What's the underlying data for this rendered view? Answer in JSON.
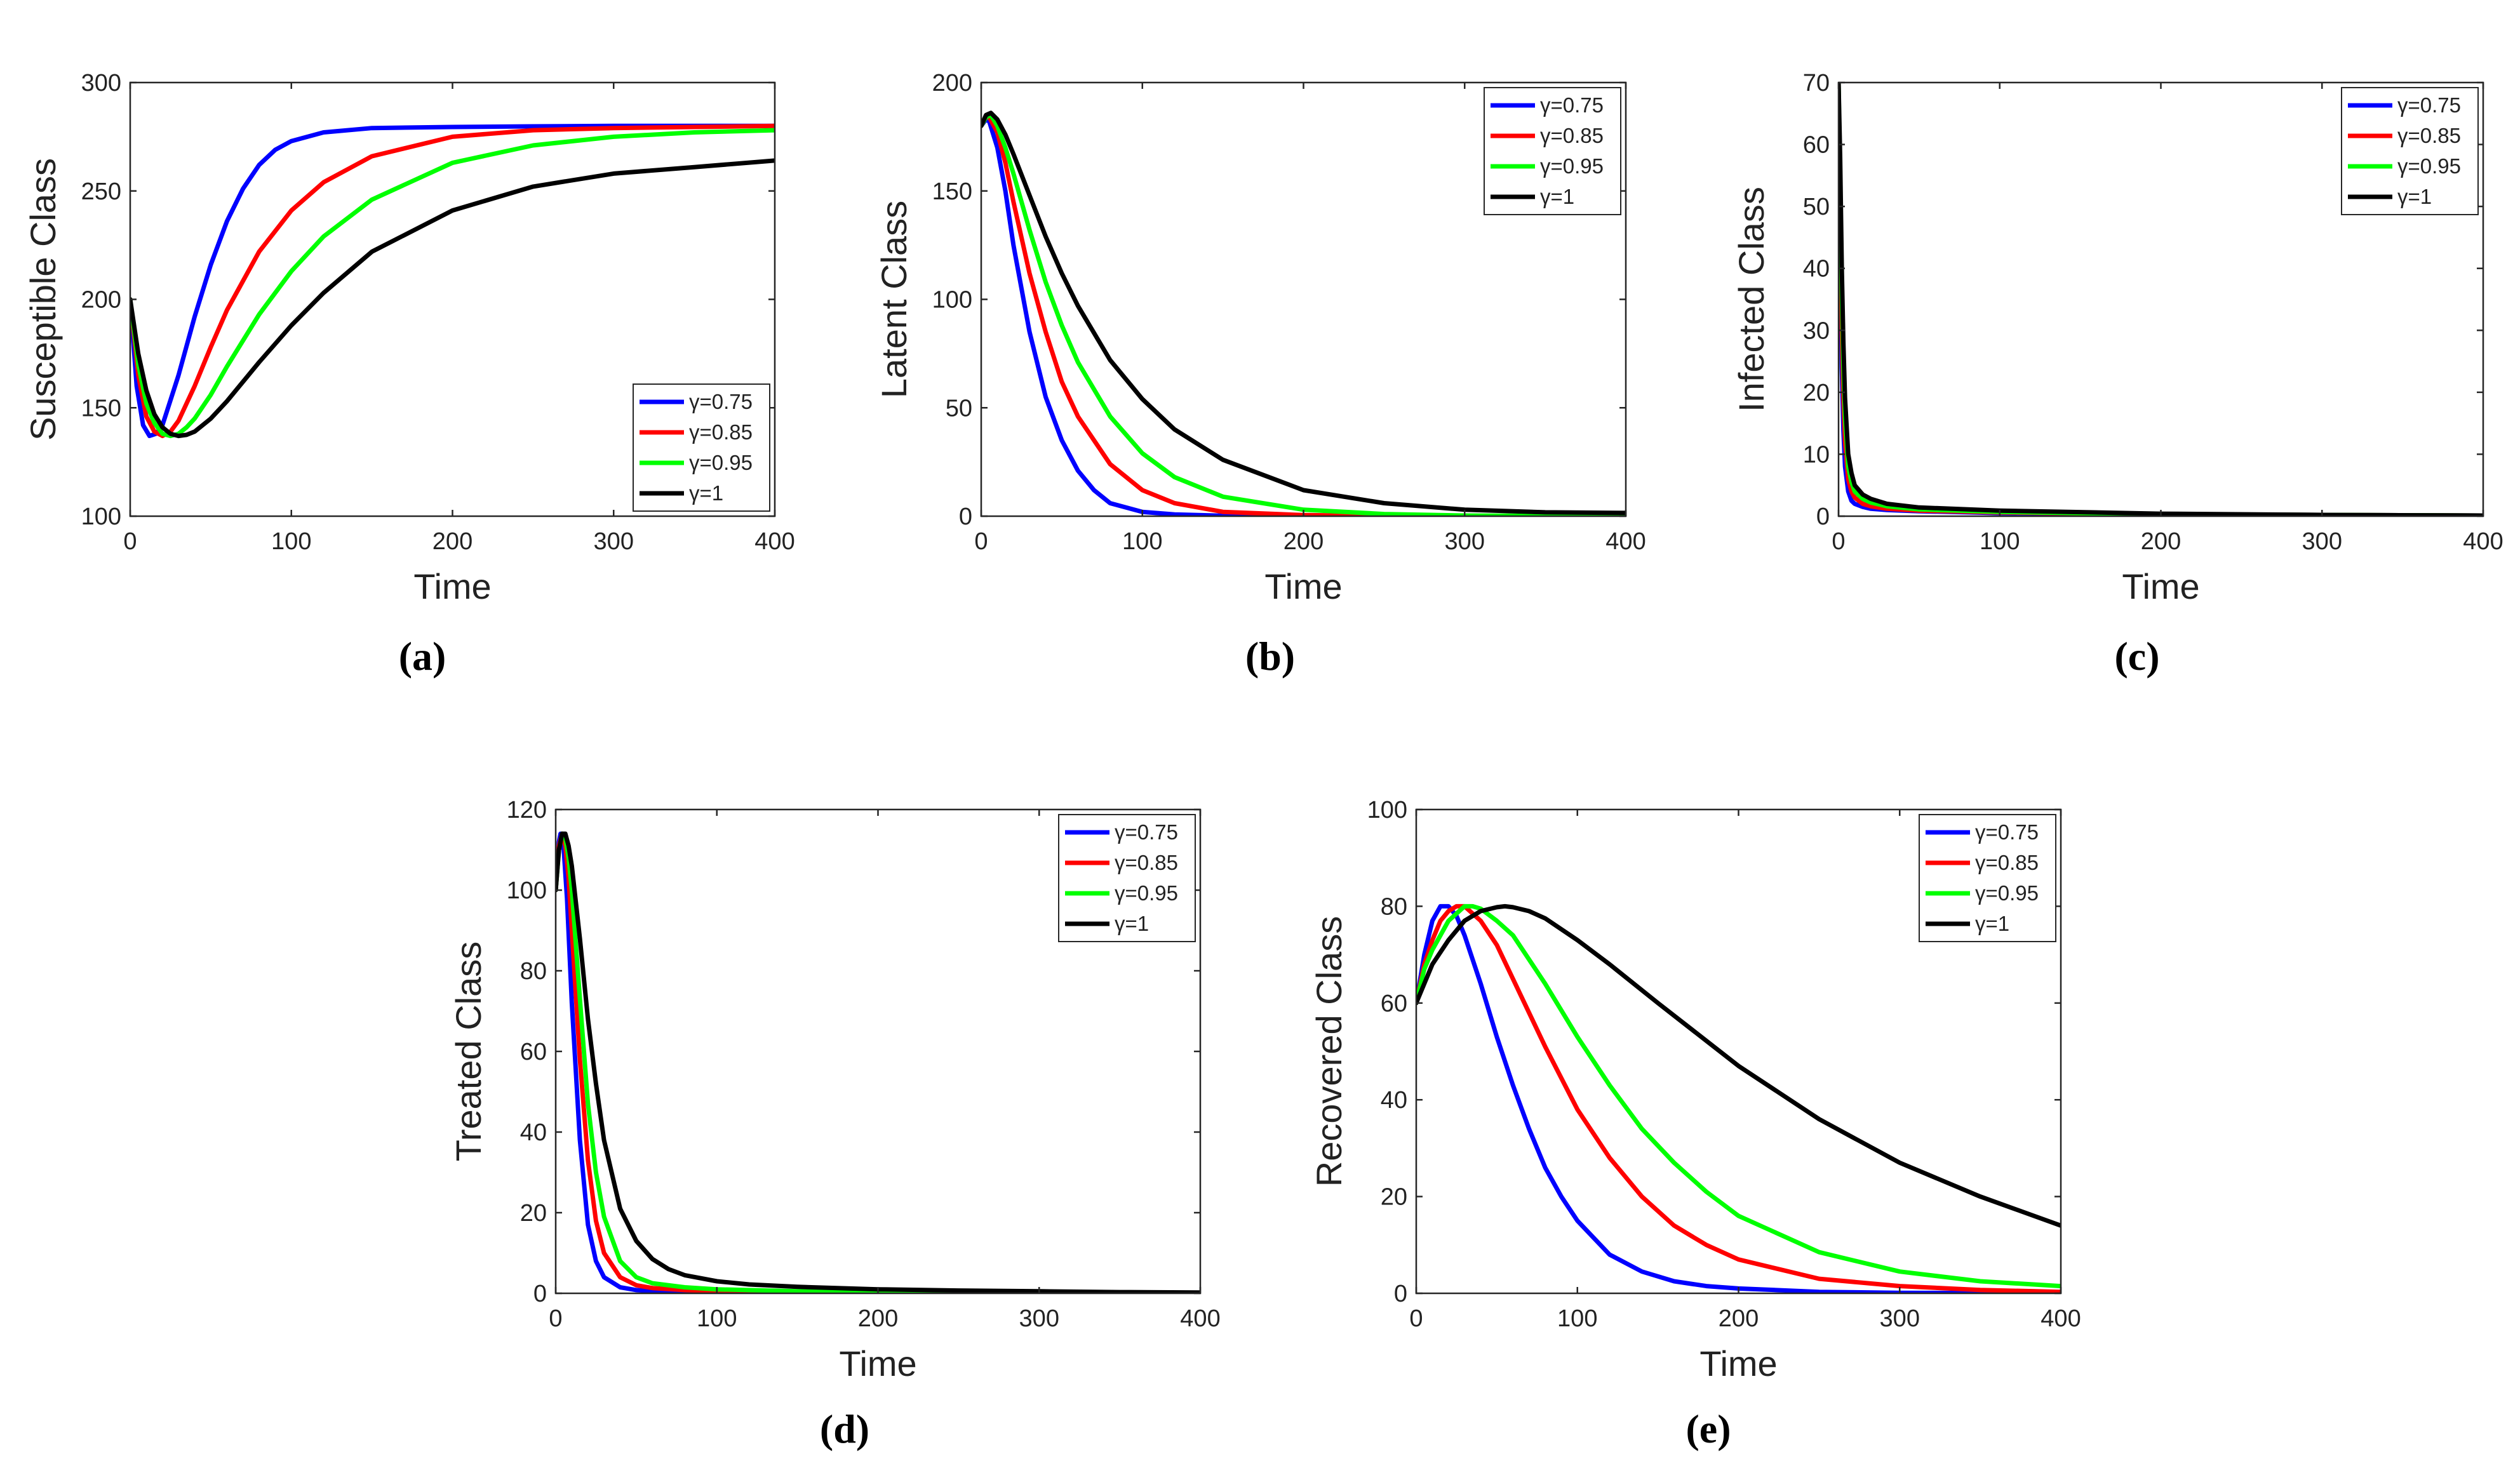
{
  "series_colors": [
    "#0000ff",
    "#ff0000",
    "#00ff00",
    "#000000"
  ],
  "legend_labels": [
    "γ=0.75",
    "γ=0.85",
    "γ=0.95",
    "γ=1"
  ],
  "chart_data": [
    {
      "id": "a",
      "type": "line",
      "caption": "(a)",
      "xlabel": "Time",
      "ylabel": "Susceptible Class",
      "xlim": [
        0,
        400
      ],
      "ylim": [
        100,
        300
      ],
      "xticks": [
        0,
        100,
        200,
        300,
        400
      ],
      "yticks": [
        100,
        150,
        200,
        250,
        300
      ],
      "legend_position": "lower-right",
      "series": [
        {
          "name": "γ=0.75",
          "color": "#0000ff",
          "x": [
            0,
            4,
            8,
            12,
            16,
            20,
            30,
            40,
            50,
            60,
            70,
            80,
            90,
            100,
            120,
            150,
            200,
            250,
            300,
            350,
            400
          ],
          "y": [
            200,
            160,
            142,
            137,
            138,
            142,
            165,
            192,
            216,
            236,
            251,
            262,
            269,
            273,
            277,
            279,
            279.5,
            279.8,
            280,
            280,
            280
          ]
        },
        {
          "name": "γ=0.85",
          "color": "#ff0000",
          "x": [
            0,
            5,
            10,
            15,
            20,
            25,
            30,
            40,
            50,
            60,
            80,
            100,
            120,
            150,
            200,
            250,
            300,
            350,
            400
          ],
          "y": [
            200,
            165,
            146,
            139,
            137,
            139,
            144,
            160,
            178,
            195,
            222,
            241,
            254,
            266,
            275,
            278,
            279,
            279.5,
            280
          ]
        },
        {
          "name": "γ=0.95",
          "color": "#00ff00",
          "x": [
            0,
            5,
            10,
            15,
            20,
            25,
            30,
            35,
            40,
            50,
            60,
            80,
            100,
            120,
            150,
            200,
            250,
            300,
            350,
            400
          ],
          "y": [
            200,
            170,
            152,
            143,
            138,
            137,
            138,
            141,
            145,
            156,
            169,
            193,
            213,
            229,
            246,
            263,
            271,
            275,
            277,
            278
          ]
        },
        {
          "name": "γ=1",
          "color": "#000000",
          "x": [
            0,
            5,
            10,
            15,
            20,
            25,
            30,
            35,
            40,
            50,
            60,
            80,
            100,
            120,
            150,
            200,
            250,
            300,
            350,
            400
          ],
          "y": [
            200,
            175,
            158,
            147,
            141,
            138,
            137,
            137.5,
            139,
            145,
            153,
            171,
            188,
            203,
            222,
            241,
            252,
            258,
            261,
            264
          ]
        }
      ]
    },
    {
      "id": "b",
      "type": "line",
      "caption": "(b)",
      "xlabel": "Time",
      "ylabel": "Latent Class",
      "xlim": [
        0,
        400
      ],
      "ylim": [
        0,
        200
      ],
      "xticks": [
        0,
        100,
        200,
        300,
        400
      ],
      "yticks": [
        0,
        50,
        100,
        150,
        200
      ],
      "legend_position": "top-right",
      "series": [
        {
          "name": "γ=0.75",
          "color": "#0000ff",
          "x": [
            0,
            3,
            5,
            10,
            15,
            20,
            30,
            40,
            50,
            60,
            70,
            80,
            100,
            120,
            150,
            200,
            300,
            400
          ],
          "y": [
            180,
            183,
            182,
            170,
            150,
            125,
            85,
            55,
            35,
            21,
            12,
            6,
            2,
            0.8,
            0.2,
            0,
            0,
            0
          ]
        },
        {
          "name": "γ=0.85",
          "color": "#ff0000",
          "x": [
            0,
            3,
            5,
            10,
            15,
            20,
            30,
            40,
            50,
            60,
            80,
            100,
            120,
            150,
            200,
            250,
            300,
            400
          ],
          "y": [
            180,
            184,
            184,
            177,
            163,
            145,
            112,
            85,
            62,
            46,
            24,
            12,
            6,
            2,
            0.5,
            0.1,
            0,
            0
          ]
        },
        {
          "name": "γ=0.95",
          "color": "#00ff00",
          "x": [
            0,
            3,
            6,
            10,
            15,
            20,
            30,
            40,
            50,
            60,
            80,
            100,
            120,
            150,
            200,
            250,
            300,
            400
          ],
          "y": [
            180,
            184,
            185,
            180,
            170,
            158,
            132,
            108,
            88,
            71,
            46,
            29,
            18,
            9,
            3,
            1,
            0.3,
            0
          ]
        },
        {
          "name": "γ=1",
          "color": "#000000",
          "x": [
            0,
            3,
            6,
            10,
            15,
            20,
            30,
            40,
            50,
            60,
            80,
            100,
            120,
            150,
            200,
            250,
            300,
            350,
            400
          ],
          "y": [
            180,
            185,
            186,
            183,
            176,
            167,
            148,
            129,
            112,
            97,
            72,
            54,
            40,
            26,
            12,
            6,
            3,
            1.8,
            1.5
          ]
        }
      ]
    },
    {
      "id": "c",
      "type": "line",
      "caption": "(c)",
      "xlabel": "Time",
      "ylabel": "Infected Class",
      "xlim": [
        0,
        400
      ],
      "ylim": [
        0,
        70
      ],
      "xticks": [
        0,
        100,
        200,
        300,
        400
      ],
      "yticks": [
        0,
        10,
        20,
        30,
        40,
        50,
        60,
        70
      ],
      "legend_position": "top-right",
      "series": [
        {
          "name": "γ=0.75",
          "color": "#0000ff",
          "x": [
            0,
            1,
            2,
            3,
            4,
            6,
            8,
            10,
            15,
            20,
            30,
            50,
            100,
            200,
            300,
            400
          ],
          "y": [
            70,
            42,
            24,
            14,
            8,
            4,
            2.5,
            2,
            1.5,
            1.2,
            1,
            0.8,
            0.5,
            0.3,
            0.2,
            0.1
          ]
        },
        {
          "name": "γ=0.85",
          "color": "#ff0000",
          "x": [
            0,
            1,
            2,
            3,
            4,
            6,
            8,
            10,
            15,
            20,
            30,
            50,
            100,
            200,
            300,
            400
          ],
          "y": [
            70,
            48,
            30,
            19,
            12,
            6,
            4,
            3,
            2,
            1.6,
            1.2,
            0.9,
            0.6,
            0.3,
            0.2,
            0.1
          ]
        },
        {
          "name": "γ=0.95",
          "color": "#00ff00",
          "x": [
            0,
            1,
            2,
            3,
            4,
            6,
            8,
            10,
            15,
            20,
            30,
            50,
            100,
            200,
            300,
            400
          ],
          "y": [
            70,
            54,
            36,
            24,
            16,
            8,
            5.5,
            4,
            2.8,
            2.2,
            1.6,
            1.1,
            0.7,
            0.3,
            0.2,
            0.1
          ]
        },
        {
          "name": "γ=1",
          "color": "#000000",
          "x": [
            0,
            1,
            2,
            3,
            4,
            6,
            8,
            10,
            15,
            20,
            30,
            50,
            100,
            200,
            300,
            400
          ],
          "y": [
            70,
            58,
            40,
            28,
            19,
            10,
            7,
            5,
            3.5,
            2.8,
            2,
            1.4,
            0.9,
            0.4,
            0.2,
            0.1
          ]
        }
      ]
    },
    {
      "id": "d",
      "type": "line",
      "caption": "(d)",
      "xlabel": "Time",
      "ylabel": "Treated Class",
      "xlim": [
        0,
        400
      ],
      "ylim": [
        0,
        120
      ],
      "xticks": [
        0,
        100,
        200,
        300,
        400
      ],
      "yticks": [
        0,
        20,
        40,
        60,
        80,
        100,
        120
      ],
      "legend_position": "top-right",
      "series": [
        {
          "name": "γ=0.75",
          "color": "#0000ff",
          "x": [
            0,
            2,
            3,
            5,
            7,
            10,
            15,
            20,
            25,
            30,
            40,
            50,
            60,
            80,
            100,
            150,
            200,
            300,
            400
          ],
          "y": [
            100,
            112,
            114,
            110,
            98,
            72,
            38,
            17,
            8,
            4,
            1.5,
            0.8,
            0.5,
            0.3,
            0.2,
            0.1,
            0,
            0,
            0
          ]
        },
        {
          "name": "γ=0.85",
          "color": "#ff0000",
          "x": [
            0,
            2,
            4,
            6,
            8,
            10,
            15,
            20,
            25,
            30,
            40,
            50,
            60,
            80,
            100,
            150,
            200,
            300,
            400
          ],
          "y": [
            100,
            111,
            114,
            111,
            103,
            90,
            58,
            33,
            18,
            10,
            4,
            2,
            1.3,
            0.8,
            0.5,
            0.3,
            0.2,
            0.1,
            0
          ]
        },
        {
          "name": "γ=0.95",
          "color": "#00ff00",
          "x": [
            0,
            2,
            4,
            6,
            8,
            10,
            15,
            20,
            25,
            30,
            40,
            50,
            60,
            80,
            100,
            150,
            200,
            300,
            400
          ],
          "y": [
            100,
            110,
            114,
            113,
            108,
            100,
            73,
            47,
            30,
            19,
            8,
            4,
            2.5,
            1.5,
            1,
            0.5,
            0.3,
            0.1,
            0
          ]
        },
        {
          "name": "γ=1",
          "color": "#000000",
          "x": [
            0,
            2,
            4,
            6,
            8,
            10,
            15,
            20,
            25,
            30,
            40,
            50,
            60,
            70,
            80,
            100,
            120,
            150,
            200,
            250,
            300,
            350,
            400
          ],
          "y": [
            100,
            110,
            114,
            114,
            111,
            106,
            88,
            68,
            52,
            38,
            21,
            13,
            8.5,
            6,
            4.5,
            3,
            2.2,
            1.6,
            1,
            0.7,
            0.5,
            0.3,
            0.2
          ]
        }
      ]
    },
    {
      "id": "e",
      "type": "line",
      "caption": "(e)",
      "xlabel": "Time",
      "ylabel": "Recovered Class",
      "xlim": [
        0,
        400
      ],
      "ylim": [
        0,
        100
      ],
      "xticks": [
        0,
        100,
        200,
        300,
        400
      ],
      "yticks": [
        0,
        20,
        40,
        60,
        80,
        100
      ],
      "legend_position": "top-right",
      "series": [
        {
          "name": "γ=0.75",
          "color": "#0000ff",
          "x": [
            0,
            5,
            10,
            15,
            20,
            25,
            30,
            40,
            50,
            60,
            70,
            80,
            90,
            100,
            120,
            140,
            160,
            180,
            200,
            250,
            300,
            400
          ],
          "y": [
            60,
            70,
            77,
            80,
            80,
            78,
            74,
            64,
            53,
            43,
            34,
            26,
            20,
            15,
            8,
            4.5,
            2.5,
            1.5,
            1,
            0.3,
            0.1,
            0
          ]
        },
        {
          "name": "γ=0.85",
          "color": "#ff0000",
          "x": [
            0,
            5,
            10,
            15,
            20,
            25,
            30,
            40,
            50,
            60,
            80,
            100,
            120,
            140,
            160,
            180,
            200,
            250,
            300,
            350,
            400
          ],
          "y": [
            60,
            68,
            73,
            77,
            79,
            80,
            80,
            77,
            72,
            65,
            51,
            38,
            28,
            20,
            14,
            10,
            7,
            3,
            1.5,
            0.7,
            0.3
          ]
        },
        {
          "name": "γ=0.95",
          "color": "#00ff00",
          "x": [
            0,
            5,
            10,
            20,
            30,
            35,
            40,
            50,
            60,
            80,
            100,
            120,
            140,
            160,
            180,
            200,
            250,
            300,
            350,
            400
          ],
          "y": [
            60,
            67,
            71,
            77,
            80,
            80,
            79.5,
            77,
            74,
            64,
            53,
            43,
            34,
            27,
            21,
            16,
            8.5,
            4.5,
            2.5,
            1.5
          ]
        },
        {
          "name": "γ=1",
          "color": "#000000",
          "x": [
            0,
            5,
            10,
            20,
            30,
            40,
            50,
            55,
            60,
            70,
            80,
            100,
            120,
            150,
            200,
            250,
            300,
            350,
            400
          ],
          "y": [
            60,
            64,
            68,
            73,
            77,
            79,
            79.8,
            80,
            79.8,
            79,
            77.5,
            73,
            68,
            60,
            47,
            36,
            27,
            20,
            14
          ]
        }
      ]
    }
  ]
}
